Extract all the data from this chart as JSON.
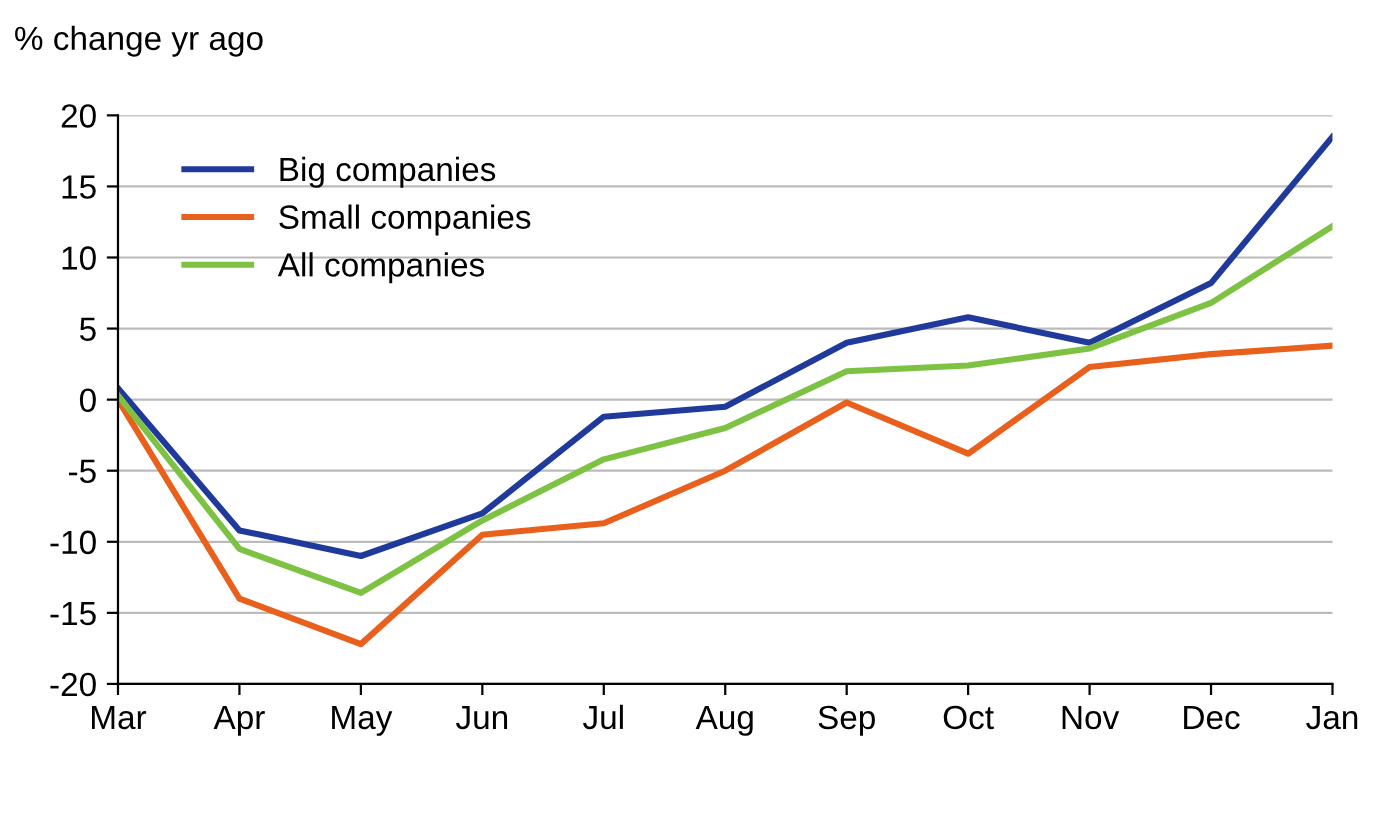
{
  "chart_data": {
    "type": "line",
    "ylabel": "% change yr ago",
    "categories": [
      "Mar",
      "Apr",
      "May",
      "Jun",
      "Jul",
      "Aug",
      "Sep",
      "Oct",
      "Nov",
      "Dec",
      "Jan"
    ],
    "series": [
      {
        "name": "Big companies",
        "color": "#1f3a9a",
        "values": [
          0.8,
          -9.2,
          -11,
          -8,
          -1.2,
          -0.5,
          4,
          5.8,
          4,
          8.2,
          18.5
        ]
      },
      {
        "name": "Small companies",
        "color": "#e8601c",
        "values": [
          0,
          -14,
          -17.2,
          -9.5,
          -8.7,
          -5,
          -0.2,
          -3.8,
          2.3,
          3.2,
          3.8
        ]
      },
      {
        "name": "All companies",
        "color": "#7dc242",
        "values": [
          0.3,
          -10.5,
          -13.6,
          -8.5,
          -4.2,
          -2,
          2,
          2.4,
          3.6,
          6.8,
          12.2
        ]
      }
    ],
    "ylim": [
      -20,
      20
    ],
    "yticks": [
      -20,
      -15,
      -10,
      -5,
      0,
      5,
      10,
      15,
      20
    ],
    "grid": "y",
    "legend": "top left"
  }
}
